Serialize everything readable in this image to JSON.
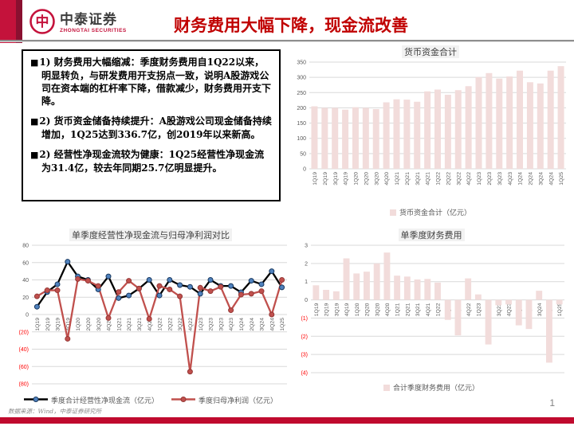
{
  "header": {
    "logo_cn": "中泰证券",
    "logo_en": "ZHONGTAI SECURITIES",
    "title": "财务费用大幅下降，现金流改善"
  },
  "bullets": [
    {
      "marker": "■",
      "lead": "1) 财务费用大幅缩减：",
      "body": "季度财务费用自1Q22以来，明显转负，与研发费用开支拐点一致，说明A股游戏公司在资本端的杠杆率下降，借款减少，财务费用开支下降。"
    },
    {
      "marker": "■",
      "lead": "2) 货币资金储备持续提升：",
      "body": "A股游戏公司现金储备持续增加，1Q25达到336.7亿，创2019年以来新高。"
    },
    {
      "marker": "■",
      "lead": "2) 经营性净现金流较为健康：",
      "body": "1Q25经营性净现金流为31.4亿，较去年同期25.7亿明显提升。"
    }
  ],
  "footer": {
    "source": "数据来源：Wind，中泰证券研究所",
    "page": "1"
  },
  "colors": {
    "accent_red": "#C00000",
    "bar_red": "#C00A2E",
    "negative_tick": "#FF0000"
  },
  "chart_data": [
    {
      "id": "money",
      "type": "bar",
      "title": "货币资金合计",
      "legend": [
        "货币资金合计（亿元）"
      ],
      "categories": [
        "1Q19",
        "2Q19",
        "3Q19",
        "4Q19",
        "1Q20",
        "2Q20",
        "3Q20",
        "4Q20",
        "1Q21",
        "2Q21",
        "3Q21",
        "4Q21",
        "1Q22",
        "2Q22",
        "3Q22",
        "4Q22",
        "1Q23",
        "2Q23",
        "3Q23",
        "4Q23",
        "1Q24",
        "2Q24",
        "3Q24",
        "4Q24",
        "1Q25"
      ],
      "values": [
        205,
        200,
        200,
        194,
        202,
        200,
        196,
        218,
        228,
        227,
        220,
        254,
        260,
        243,
        258,
        271,
        301,
        314,
        296,
        303,
        322,
        284,
        280,
        322,
        336.7
      ],
      "ylim": [
        0,
        350
      ],
      "ytick": 50,
      "bar_color": "#F2DCDB",
      "grid": true,
      "legend_position": "bottom"
    },
    {
      "id": "cashflow_vs_profit",
      "type": "line",
      "title": "单季度经营性净现金流与归母净利润对比",
      "categories": [
        "1Q19",
        "2Q19",
        "3Q19",
        "4Q19",
        "1Q20",
        "2Q20",
        "3Q20",
        "4Q20",
        "1Q21",
        "2Q21",
        "3Q21",
        "4Q21",
        "1Q22",
        "2Q22",
        "3Q22",
        "4Q22",
        "1Q23",
        "2Q23",
        "3Q23",
        "4Q23",
        "1Q24",
        "2Q24",
        "3Q24",
        "4Q24",
        "1Q25"
      ],
      "series": [
        {
          "name": "季度合计经营性净现金流（亿元）",
          "color": "#000000",
          "marker": "#4F81BD",
          "marker_edge": "#17375E",
          "values": [
            9,
            26,
            35,
            61,
            44,
            40,
            29,
            44,
            19,
            22,
            30,
            40,
            22,
            40,
            34,
            32,
            24,
            40,
            33,
            33,
            25.7,
            39,
            35,
            50,
            31.4
          ]
        },
        {
          "name": "季度归母净利润（亿元）",
          "color": "#C0504D",
          "marker": "#C0504D",
          "marker_edge": "#953735",
          "values": [
            21,
            28,
            28,
            -28,
            41,
            39,
            33,
            -4,
            26,
            39,
            30,
            -5,
            33,
            29,
            21,
            -66,
            31,
            27,
            32,
            5,
            23,
            24,
            27,
            0,
            40
          ]
        }
      ],
      "ylim": [
        -80,
        80
      ],
      "ytick": 20,
      "grid": true,
      "legend_position": "bottom"
    },
    {
      "id": "fin_expense",
      "type": "bar",
      "title": "单季度财务费用",
      "legend": [
        "合计季度财务费用（亿元）"
      ],
      "categories": [
        "1Q19",
        "2Q19",
        "3Q19",
        "4Q19",
        "1Q20",
        "2Q20",
        "3Q20",
        "4Q20",
        "1Q21",
        "2Q21",
        "3Q21",
        "4Q21",
        "1Q22",
        "2Q22",
        "3Q22",
        "4Q22",
        "1Q23",
        "2Q23",
        "3Q23",
        "4Q23",
        "1Q24",
        "2Q24",
        "3Q24",
        "4Q24",
        "1Q25"
      ],
      "values": [
        0.8,
        0.55,
        0.47,
        2.28,
        1.45,
        1.55,
        2.0,
        2.6,
        1.33,
        1.28,
        1.12,
        1.15,
        0.95,
        -1.1,
        -1.95,
        1.18,
        0.3,
        -2.45,
        -0.3,
        -0.25,
        -1.4,
        -1.6,
        0.5,
        -3.45,
        -0.25
      ],
      "ylim": [
        -4,
        3
      ],
      "ytick": 1,
      "bar_color": "#F2DCDB",
      "grid": true,
      "legend_position": "bottom"
    }
  ]
}
